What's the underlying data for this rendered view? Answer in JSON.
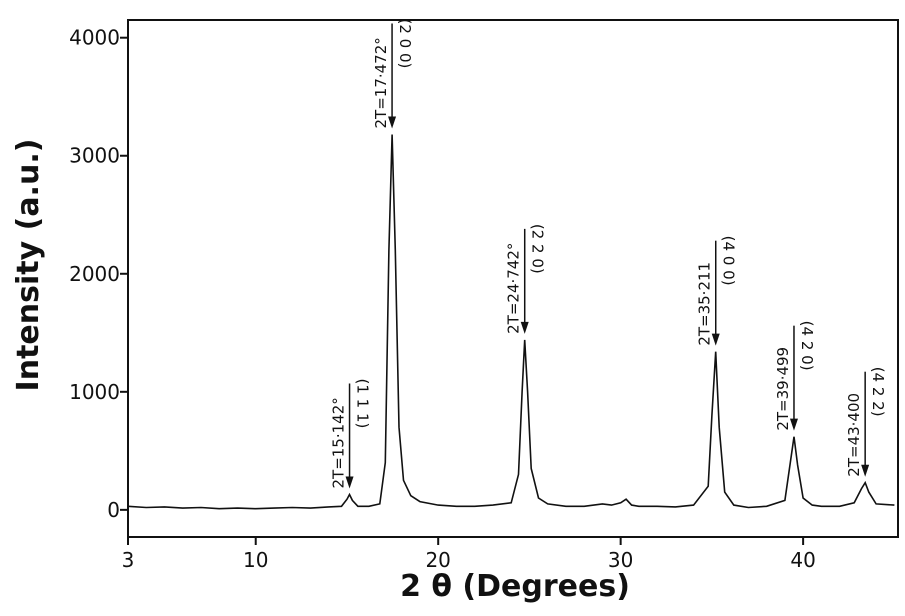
{
  "chart_data": {
    "type": "line",
    "x_label": "2 θ (Degrees)",
    "y_label": "Intensity (a.u.)",
    "xlim": [
      3,
      45.2
    ],
    "ylim": [
      -230,
      4150
    ],
    "xticks": [
      3,
      10,
      20,
      30,
      40
    ],
    "yticks": [
      0,
      1000,
      2000,
      3000,
      4000
    ],
    "color": "#111111",
    "x": [
      3,
      4,
      5,
      6,
      7,
      8,
      9,
      10,
      11,
      12,
      13,
      14,
      14.7,
      15.0,
      15.142,
      15.3,
      15.6,
      16.2,
      16.8,
      17.1,
      17.3,
      17.472,
      17.65,
      17.85,
      18.1,
      18.5,
      19,
      20,
      21,
      22,
      23,
      24,
      24.4,
      24.6,
      24.742,
      24.9,
      25.1,
      25.5,
      26,
      27,
      28,
      29,
      29.5,
      30,
      30.3,
      30.6,
      31,
      32,
      33,
      34,
      34.8,
      35.0,
      35.211,
      35.4,
      35.7,
      36.2,
      37,
      38,
      39,
      39.3,
      39.499,
      39.7,
      40.0,
      40.5,
      41,
      42,
      42.8,
      43.2,
      43.4,
      43.6,
      44,
      45
    ],
    "values": [
      30,
      20,
      25,
      15,
      20,
      10,
      15,
      10,
      15,
      20,
      15,
      25,
      30,
      90,
      130,
      80,
      30,
      30,
      50,
      400,
      2200,
      3180,
      2200,
      700,
      250,
      120,
      70,
      40,
      30,
      30,
      40,
      60,
      300,
      1000,
      1440,
      1000,
      350,
      100,
      50,
      30,
      30,
      50,
      40,
      60,
      90,
      40,
      30,
      30,
      25,
      40,
      200,
      800,
      1340,
      700,
      150,
      40,
      20,
      30,
      80,
      400,
      620,
      380,
      100,
      40,
      30,
      30,
      60,
      180,
      230,
      150,
      50,
      40
    ],
    "annotations": [
      {
        "x": 15.142,
        "text": "2T=15·142°",
        "hkl": "(1 1 1)"
      },
      {
        "x": 17.472,
        "text": "2T=17·472°",
        "hkl": "(2 0 0)"
      },
      {
        "x": 24.742,
        "text": "2T=24·742°",
        "hkl": "(2 2 0)"
      },
      {
        "x": 35.211,
        "text": "2T=35·211",
        "hkl": "(4 0 0)"
      },
      {
        "x": 39.499,
        "text": "2T=39·499",
        "hkl": "(4 2 0)"
      },
      {
        "x": 43.4,
        "text": "2T=43·400",
        "hkl": "(4 2 2)"
      }
    ]
  }
}
